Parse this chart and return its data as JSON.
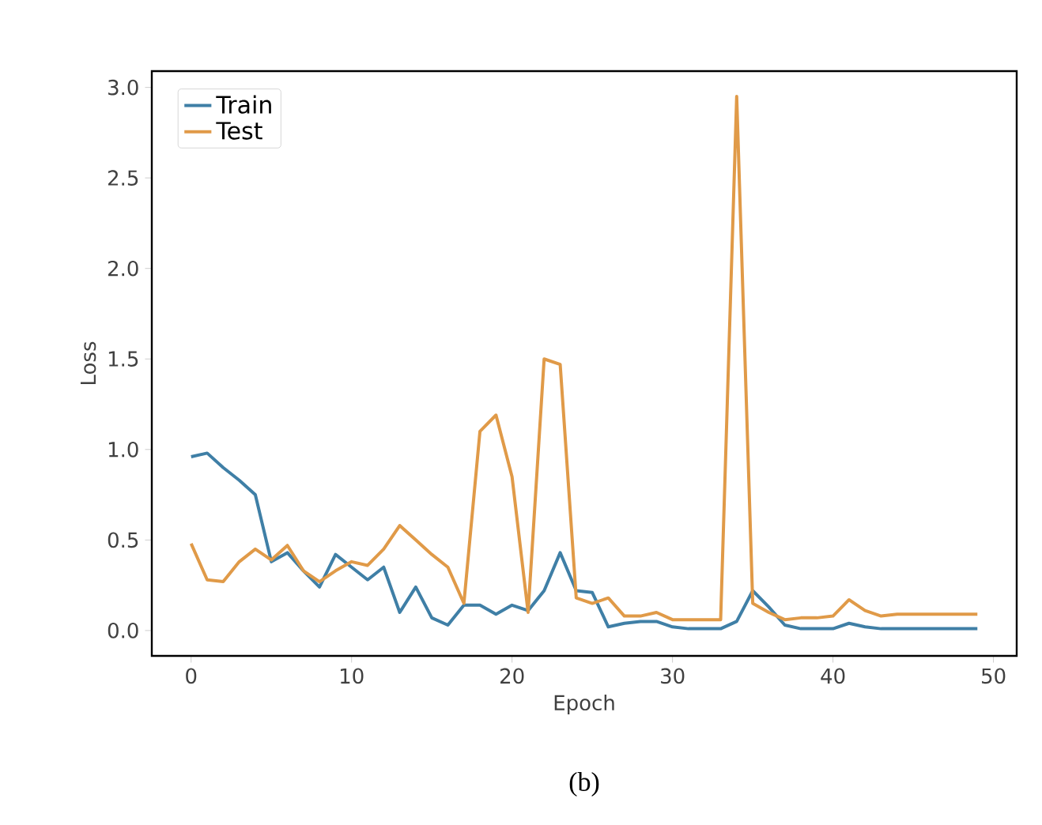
{
  "chart_data": {
    "type": "line",
    "xlabel": "Epoch",
    "ylabel": "Loss",
    "x": [
      0,
      1,
      2,
      3,
      4,
      5,
      6,
      7,
      8,
      9,
      10,
      11,
      12,
      13,
      14,
      15,
      16,
      17,
      18,
      19,
      20,
      21,
      22,
      23,
      24,
      25,
      26,
      27,
      28,
      29,
      30,
      31,
      32,
      33,
      34,
      35,
      36,
      37,
      38,
      39,
      40,
      41,
      42,
      43,
      44,
      45,
      46,
      47,
      48,
      49
    ],
    "series": [
      {
        "name": "Train",
        "color": "#3f7fa6",
        "values": [
          0.96,
          0.98,
          0.9,
          0.83,
          0.75,
          0.38,
          0.43,
          0.33,
          0.24,
          0.42,
          0.35,
          0.28,
          0.35,
          0.1,
          0.24,
          0.07,
          0.03,
          0.14,
          0.14,
          0.09,
          0.14,
          0.11,
          0.22,
          0.43,
          0.22,
          0.21,
          0.02,
          0.04,
          0.05,
          0.05,
          0.02,
          0.01,
          0.01,
          0.01,
          0.05,
          0.22,
          0.13,
          0.03,
          0.01,
          0.01,
          0.01,
          0.04,
          0.02,
          0.01,
          0.01,
          0.01,
          0.01,
          0.01,
          0.01,
          0.01
        ]
      },
      {
        "name": "Test",
        "color": "#e09a48",
        "values": [
          0.48,
          0.28,
          0.27,
          0.38,
          0.45,
          0.39,
          0.47,
          0.33,
          0.27,
          0.33,
          0.38,
          0.36,
          0.45,
          0.58,
          0.5,
          0.42,
          0.35,
          0.15,
          1.1,
          1.19,
          0.85,
          0.1,
          1.5,
          1.47,
          0.18,
          0.15,
          0.18,
          0.08,
          0.08,
          0.1,
          0.06,
          0.06,
          0.06,
          0.06,
          2.95,
          0.15,
          0.1,
          0.06,
          0.07,
          0.07,
          0.08,
          0.17,
          0.11,
          0.08,
          0.09,
          0.09,
          0.09,
          0.09,
          0.09,
          0.09
        ]
      }
    ],
    "xlim": [
      -2.45,
      51.45
    ],
    "ylim": [
      -0.14,
      3.09
    ],
    "xticks": [
      0,
      10,
      20,
      30,
      40,
      50
    ],
    "yticks": [
      {
        "value": 0,
        "label": "0.0"
      },
      {
        "value": 0.5,
        "label": "0.5"
      },
      {
        "value": 1,
        "label": "1.0"
      },
      {
        "value": 1.5,
        "label": "1.5"
      },
      {
        "value": 2,
        "label": "2.0"
      },
      {
        "value": 2.5,
        "label": "2.5"
      },
      {
        "value": 3,
        "label": "3.0"
      }
    ],
    "legend": "top left",
    "grid": false,
    "marker": "none",
    "line_style": "solid",
    "annotations": [
      "(b)"
    ]
  }
}
